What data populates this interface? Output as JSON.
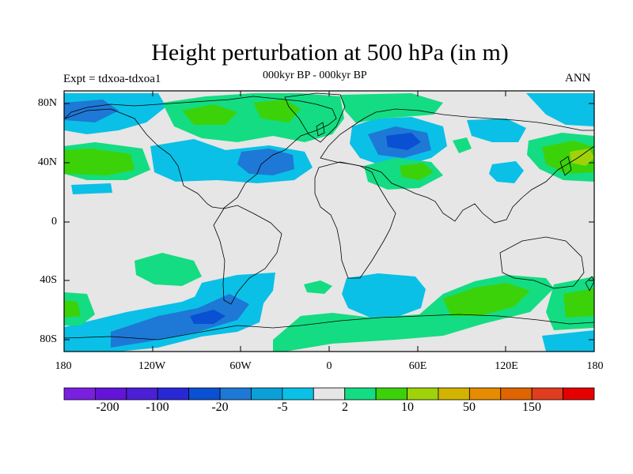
{
  "title": "Height perturbation at 500 hPa (in m)",
  "left_label": "Expt = tdxoa-tdxoa1",
  "center_label": "000kyr BP - 000kyr BP",
  "right_label": "ANN",
  "lat_ticks": [
    "80N",
    "40N",
    "0",
    "40S",
    "80S"
  ],
  "lon_ticks": [
    "180",
    "120W",
    "60W",
    "0",
    "60E",
    "120E",
    "180"
  ],
  "colorbar": {
    "labels": [
      "-200",
      "-100",
      "-20",
      "-5",
      "2",
      "10",
      "50",
      "150"
    ],
    "colors": [
      "#7a1fe0",
      "#6414d8",
      "#4a1fd6",
      "#2828d6",
      "#0a50d2",
      "#1e78d6",
      "#0aa0d8",
      "#0ac0e6",
      "#e6e6e6",
      "#14dc82",
      "#3cd20a",
      "#a0d20a",
      "#d2b400",
      "#e68c00",
      "#e06400",
      "#e03c1e",
      "#e60000"
    ]
  },
  "colors": {
    "background": "#e6e6e6",
    "strong_negative": "#0a50d2",
    "negative": "#1e78d6",
    "weak_negative": "#0ac0e6",
    "weak_positive": "#14dc82",
    "positive": "#3cd20a",
    "strong_positive": "#a0d20a"
  }
}
